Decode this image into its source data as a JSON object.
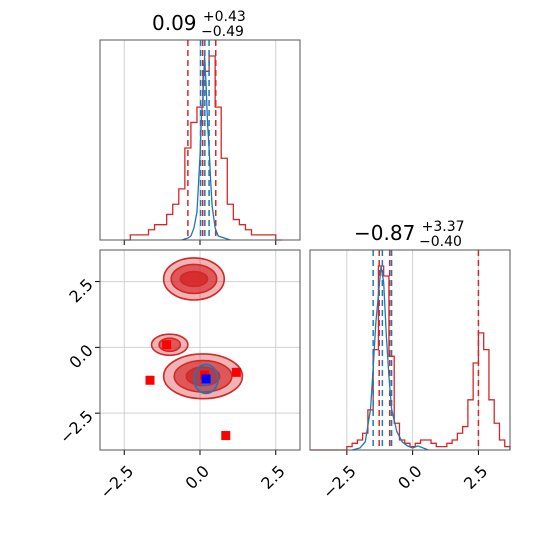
{
  "chart_data": [
    {
      "type": "histogram",
      "panel": "top-left marginal",
      "title": {
        "value": "0.09",
        "plus": "+0.43",
        "minus": "−0.49"
      },
      "xlim": [
        -3.3,
        3.3
      ],
      "grid": true,
      "bin_edges": [
        -2.5,
        -2.3,
        -2.1,
        -1.9,
        -1.7,
        -1.5,
        -1.3,
        -1.1,
        -0.9,
        -0.7,
        -0.5,
        -0.3,
        -0.1,
        0.1,
        0.3,
        0.5,
        0.7,
        0.9,
        1.1,
        1.3,
        1.5,
        1.7,
        1.9,
        2.1,
        2.3,
        2.5,
        2.7
      ],
      "series": [
        {
          "color": "#d62728",
          "style": "step",
          "counts": [
            0.0,
            0.01,
            0.01,
            0.01,
            0.02,
            0.03,
            0.03,
            0.05,
            0.07,
            0.1,
            0.18,
            0.23,
            0.26,
            0.33,
            0.36,
            0.26,
            0.16,
            0.07,
            0.04,
            0.03,
            0.02,
            0.01,
            0.01,
            0.01,
            0.01,
            0.0
          ],
          "quantiles": [
            -0.4,
            0.09,
            0.52
          ]
        },
        {
          "color": "#1f77b4",
          "style": "line",
          "x": [
            -0.6,
            -0.4,
            -0.3,
            -0.2,
            -0.1,
            0.0,
            0.05,
            0.1,
            0.15,
            0.2,
            0.25,
            0.3,
            0.35,
            0.4,
            0.5,
            0.6,
            0.8,
            1.0
          ],
          "y": [
            0.0,
            0.01,
            0.02,
            0.06,
            0.14,
            0.42,
            0.62,
            0.72,
            0.92,
            0.78,
            0.58,
            0.46,
            0.3,
            0.17,
            0.06,
            0.02,
            0.01,
            0.0
          ],
          "quantiles": [
            0.02,
            0.16,
            0.3
          ]
        }
      ]
    },
    {
      "type": "contour",
      "panel": "bottom-left joint",
      "xlim": [
        -3.3,
        3.3
      ],
      "ylim": [
        -3.9,
        3.7
      ],
      "xticks": [
        "−2.5",
        "0.0",
        "2.5"
      ],
      "yticks": [
        "2.5",
        "0.0",
        "−2.5"
      ],
      "grid": true,
      "contours": [
        {
          "color": "#d62728",
          "center": [
            -0.2,
            2.6
          ],
          "levels": [
            [
              0.45,
              0.28
            ],
            [
              0.75,
              0.55
            ],
            [
              1.0,
              0.8
            ]
          ]
        },
        {
          "color": "#d62728",
          "center": [
            0.1,
            -1.1
          ],
          "levels": [
            [
              0.55,
              0.35
            ],
            [
              0.95,
              0.6
            ],
            [
              1.3,
              0.85
            ]
          ]
        },
        {
          "color": "#d62728",
          "center": [
            -1.0,
            0.1
          ],
          "levels": [
            [
              0.35,
              0.25
            ],
            [
              0.6,
              0.4
            ]
          ]
        },
        {
          "color": "#1f77b4",
          "center": [
            0.2,
            -1.2
          ],
          "levels": [
            [
              0.15,
              0.2
            ],
            [
              0.4,
              0.55
            ]
          ]
        }
      ],
      "markers": [
        {
          "color": "#ff0000",
          "shape": "square",
          "x": -1.1,
          "y": 0.1
        },
        {
          "color": "#ff0000",
          "shape": "square",
          "x": -1.65,
          "y": -1.25
        },
        {
          "color": "#ff0000",
          "shape": "square",
          "x": 1.2,
          "y": -0.95
        },
        {
          "color": "#ff0000",
          "shape": "square",
          "x": 0.85,
          "y": -3.35
        },
        {
          "color": "#ff0000",
          "shape": "square",
          "x": 0.15,
          "y": -1.05
        },
        {
          "color": "#0000ff",
          "shape": "square",
          "x": 0.2,
          "y": -1.2
        }
      ]
    },
    {
      "type": "histogram",
      "panel": "bottom-right marginal",
      "title": {
        "value": "−0.87",
        "plus": "+3.37",
        "minus": "−0.40"
      },
      "xlim": [
        -3.9,
        3.7
      ],
      "xticks": [
        "−2.5",
        "0.0",
        "2.5"
      ],
      "grid": true,
      "bin_edges": [
        -3.9,
        -3.7,
        -3.5,
        -3.3,
        -3.1,
        -2.9,
        -2.7,
        -2.5,
        -2.3,
        -2.1,
        -1.9,
        -1.7,
        -1.5,
        -1.3,
        -1.1,
        -0.9,
        -0.7,
        -0.5,
        -0.3,
        -0.1,
        0.1,
        0.3,
        0.5,
        0.7,
        0.9,
        1.1,
        1.3,
        1.5,
        1.7,
        1.9,
        2.1,
        2.3,
        2.5,
        2.7,
        2.9,
        3.1,
        3.3,
        3.5,
        3.7
      ],
      "series": [
        {
          "color": "#d62728",
          "style": "step",
          "counts": [
            0.0,
            0.0,
            0.0,
            0.0,
            0.0,
            0.0,
            0.0,
            0.01,
            0.02,
            0.03,
            0.05,
            0.12,
            0.3,
            0.55,
            0.52,
            0.28,
            0.08,
            0.03,
            0.02,
            0.01,
            0.02,
            0.03,
            0.03,
            0.02,
            0.01,
            0.01,
            0.02,
            0.03,
            0.05,
            0.07,
            0.15,
            0.26,
            0.35,
            0.3,
            0.15,
            0.08,
            0.03,
            0.01
          ],
          "quantiles": [
            -1.27,
            -0.87,
            2.5
          ]
        },
        {
          "color": "#1f77b4",
          "style": "line",
          "x": [
            -2.3,
            -2.0,
            -1.8,
            -1.6,
            -1.5,
            -1.4,
            -1.3,
            -1.2,
            -1.1,
            -1.0,
            -0.9,
            -0.8,
            -0.6,
            -0.4,
            -0.2,
            0.0,
            0.2,
            0.6
          ],
          "y": [
            0.0,
            0.01,
            0.04,
            0.2,
            0.4,
            0.62,
            0.76,
            0.9,
            0.82,
            0.56,
            0.36,
            0.2,
            0.09,
            0.04,
            0.02,
            0.01,
            0.02,
            0.0
          ],
          "quantiles": [
            -1.5,
            -1.15,
            -0.8
          ]
        }
      ]
    }
  ]
}
